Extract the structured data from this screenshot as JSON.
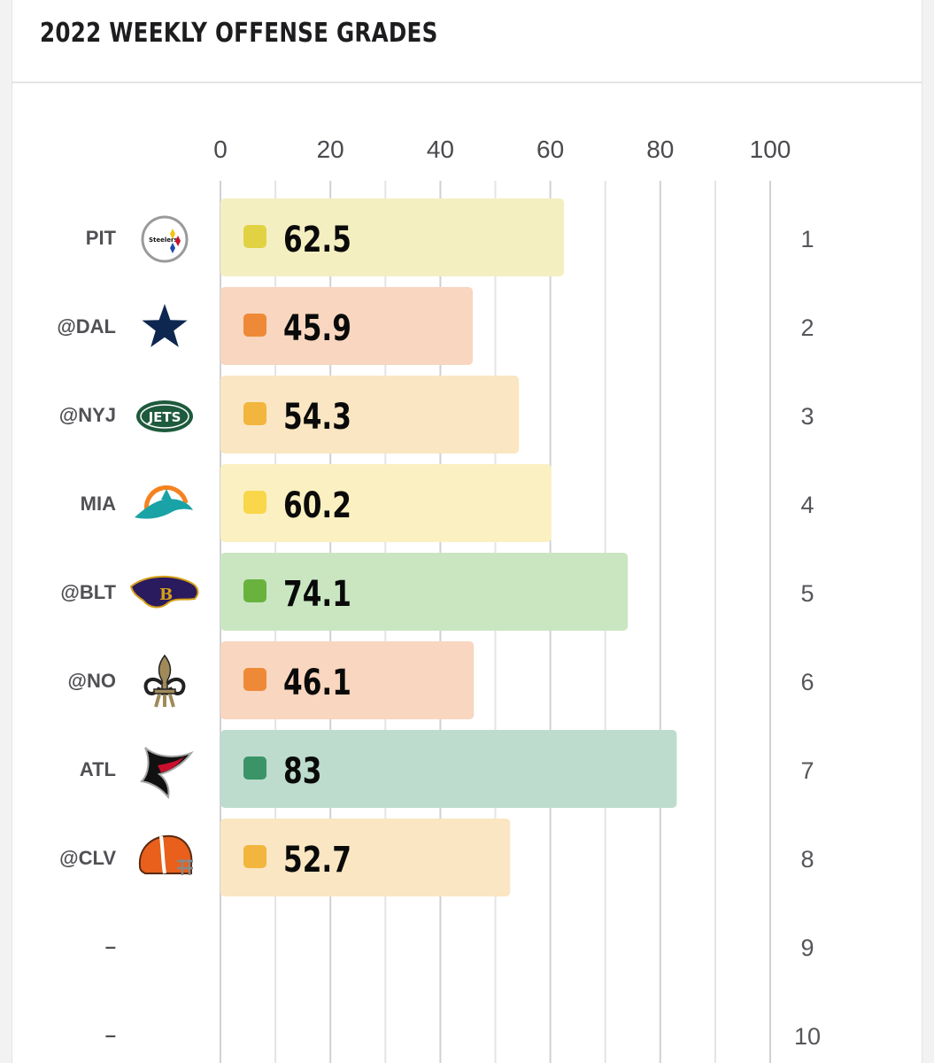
{
  "header": {
    "title": "2022 WEEKLY OFFENSE GRADES"
  },
  "chart_data": {
    "type": "bar",
    "orientation": "horizontal",
    "title": "2022 WEEKLY OFFENSE GRADES",
    "xlabel": "",
    "ylabel": "",
    "xlim": [
      0,
      100
    ],
    "x_ticks": [
      "0",
      "20",
      "40",
      "60",
      "80",
      "100"
    ],
    "grid": true,
    "legend": "none",
    "weeks": [
      "1",
      "2",
      "3",
      "4",
      "5",
      "6",
      "7",
      "8",
      "9",
      "10"
    ],
    "opponents": [
      "PIT",
      "@DAL",
      "@NYJ",
      "MIA",
      "@BLT",
      "@NO",
      "ATL",
      "@CLV",
      "–",
      "–"
    ],
    "logos": [
      "steelers-logo-icon",
      "cowboys-star-icon",
      "jets-logo-icon",
      "dolphins-logo-icon",
      "ravens-logo-icon",
      "saints-fleur-de-lis-icon",
      "falcons-logo-icon",
      "browns-helmet-icon",
      null,
      null
    ],
    "values": [
      62.5,
      45.9,
      54.3,
      60.2,
      74.1,
      46.1,
      83,
      52.7,
      null,
      null
    ],
    "value_labels": [
      "62.5",
      "45.9",
      "54.3",
      "60.2",
      "74.1",
      "46.1",
      "83",
      "52.7",
      "",
      ""
    ],
    "bar_colors": [
      "#f4efc1",
      "#f9d6bf",
      "#fae6c2",
      "#fbf0c1",
      "#c9e6c1",
      "#f9d6bf",
      "#bddccd",
      "#fae6c2"
    ],
    "dot_colors": [
      "#e1d243",
      "#ee8a37",
      "#f2b53d",
      "#f9d64a",
      "#69b23d",
      "#ee8a37",
      "#3a9467",
      "#f2b53d"
    ]
  }
}
